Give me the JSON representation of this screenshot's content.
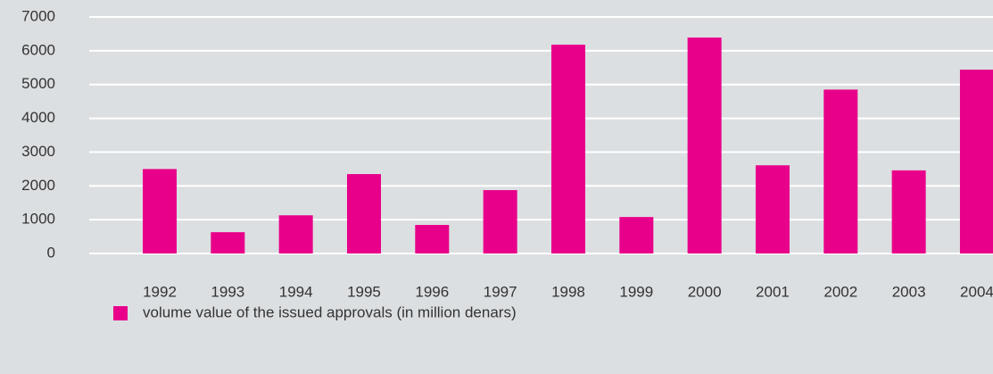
{
  "chart_data": {
    "type": "bar",
    "categories": [
      "1992",
      "1993",
      "1994",
      "1995",
      "1996",
      "1997",
      "1998",
      "1999",
      "2000",
      "2001",
      "2002",
      "2003",
      "2004"
    ],
    "series": [
      {
        "name": "volume value of the issued approvals (in million denars)",
        "color": "#e8008a",
        "values": [
          2500,
          630,
          1130,
          2350,
          845,
          1875,
          6180,
          1080,
          6390,
          2610,
          4850,
          2460,
          5440
        ]
      }
    ],
    "ylim": [
      0,
      7000
    ],
    "yticks": [
      0,
      1000,
      2000,
      3000,
      4000,
      5000,
      6000,
      7000
    ],
    "grid": true,
    "legend": "bottom-left"
  }
}
